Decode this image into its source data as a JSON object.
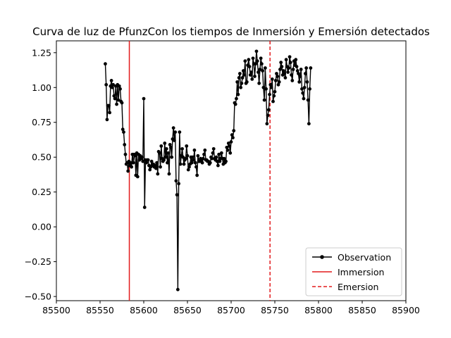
{
  "chart_data": {
    "type": "line",
    "title": "Curva de luz de PfunzCon los tiempos de Inmersión y Emersión detectados",
    "xlabel": "",
    "ylabel": "",
    "xlim": [
      85500,
      85900
    ],
    "ylim": [
      -0.53,
      1.335
    ],
    "xticks": [
      85500,
      85550,
      85600,
      85650,
      85700,
      85750,
      85800,
      85850,
      85900
    ],
    "yticks": [
      -0.5,
      -0.25,
      0.0,
      0.25,
      0.5,
      0.75,
      1.0,
      1.25
    ],
    "grid": false,
    "legend_position": "lower-right",
    "series": [
      {
        "name": "Observation",
        "color": "#000000",
        "marker": "circle",
        "x": [
          85556,
          85557,
          85558,
          85559,
          85560,
          85561,
          85562,
          85563,
          85564,
          85565,
          85566,
          85567,
          85568,
          85569,
          85570,
          85571,
          85572,
          85573,
          85574,
          85575,
          85576,
          85577,
          85578,
          85579,
          85580,
          85581,
          85582,
          85583,
          85584,
          85585,
          85586,
          85587,
          85588,
          85589,
          85590,
          85591,
          85592,
          85593,
          85594,
          85595,
          85596,
          85597,
          85598,
          85599,
          85600,
          85601,
          85602,
          85603,
          85604,
          85605,
          85606,
          85607,
          85608,
          85609,
          85610,
          85611,
          85612,
          85613,
          85614,
          85615,
          85616,
          85617,
          85618,
          85619,
          85620,
          85621,
          85622,
          85623,
          85624,
          85625,
          85626,
          85627,
          85628,
          85629,
          85630,
          85631,
          85632,
          85633,
          85634,
          85635,
          85636,
          85637,
          85638,
          85639,
          85640,
          85641,
          85642,
          85643,
          85644,
          85645,
          85646,
          85647,
          85648,
          85649,
          85650,
          85651,
          85652,
          85653,
          85654,
          85655,
          85656,
          85657,
          85658,
          85659,
          85660,
          85661,
          85662,
          85663,
          85664,
          85665,
          85666,
          85667,
          85668,
          85669,
          85670,
          85671,
          85672,
          85673,
          85674,
          85675,
          85676,
          85677,
          85678,
          85679,
          85680,
          85681,
          85682,
          85683,
          85684,
          85685,
          85686,
          85687,
          85688,
          85689,
          85690,
          85691,
          85692,
          85693,
          85694,
          85695,
          85696,
          85697,
          85698,
          85699,
          85700,
          85701,
          85702,
          85703,
          85704,
          85705,
          85706,
          85707,
          85708,
          85709,
          85710,
          85711,
          85712,
          85713,
          85714,
          85715,
          85716,
          85717,
          85718,
          85719,
          85720,
          85721,
          85722,
          85723,
          85724,
          85725,
          85726,
          85727,
          85728,
          85729,
          85730,
          85731,
          85732,
          85733,
          85734,
          85735,
          85736,
          85737,
          85738,
          85739,
          85740,
          85741,
          85742,
          85743,
          85744,
          85745,
          85746,
          85747,
          85748,
          85749,
          85750,
          85751,
          85752,
          85753,
          85754,
          85755,
          85756,
          85757,
          85758,
          85759,
          85760,
          85761,
          85762,
          85763,
          85764,
          85765,
          85766,
          85767,
          85768,
          85769,
          85770,
          85771,
          85772,
          85773,
          85774,
          85775,
          85776,
          85777,
          85778,
          85779,
          85780,
          85781,
          85782,
          85783,
          85784,
          85785,
          85786,
          85787,
          85788,
          85789,
          85790,
          85791
        ],
        "y": [
          1.17,
          1.02,
          0.77,
          0.87,
          0.87,
          0.82,
          1.01,
          1.05,
          1.0,
          1.02,
          0.94,
          0.92,
          1.01,
          0.88,
          1.02,
          0.91,
          1.01,
          0.99,
          0.9,
          0.89,
          0.7,
          0.68,
          0.59,
          0.52,
          0.45,
          0.46,
          0.4,
          0.47,
          0.44,
          0.46,
          0.43,
          0.52,
          0.46,
          0.52,
          0.51,
          0.37,
          0.53,
          0.36,
          0.52,
          0.48,
          0.51,
          0.49,
          0.5,
          0.47,
          0.92,
          0.14,
          0.48,
          0.46,
          0.48,
          0.48,
          0.44,
          0.41,
          0.43,
          0.47,
          0.44,
          0.45,
          0.43,
          0.44,
          0.42,
          0.46,
          0.38,
          0.54,
          0.53,
          0.43,
          0.58,
          0.49,
          0.47,
          0.48,
          0.6,
          0.5,
          0.56,
          0.46,
          0.53,
          0.38,
          0.59,
          0.57,
          0.5,
          0.63,
          0.71,
          0.62,
          0.68,
          0.33,
          0.23,
          -0.45,
          0.31,
          0.68,
          0.45,
          0.51,
          0.56,
          0.5,
          0.45,
          0.48,
          0.49,
          0.58,
          0.51,
          0.41,
          0.43,
          0.45,
          0.5,
          0.46,
          0.5,
          0.48,
          0.55,
          0.46,
          0.43,
          0.37,
          0.51,
          0.47,
          0.47,
          0.49,
          0.48,
          0.46,
          0.49,
          0.52,
          0.55,
          0.48,
          0.48,
          0.47,
          0.47,
          0.45,
          0.46,
          0.5,
          0.49,
          0.53,
          0.56,
          0.49,
          0.48,
          0.5,
          0.47,
          0.44,
          0.52,
          0.47,
          0.49,
          0.53,
          0.49,
          0.45,
          0.49,
          0.46,
          0.47,
          0.57,
          0.55,
          0.6,
          0.58,
          0.53,
          0.61,
          0.66,
          0.64,
          0.69,
          0.89,
          0.88,
          0.92,
          1.04,
          0.95,
          1.07,
          1.1,
          1.0,
          1.03,
          1.07,
          1.12,
          1.09,
          1.19,
          1.03,
          1.04,
          1.16,
          1.2,
          1.15,
          1.09,
          1.11,
          1.06,
          1.21,
          1.17,
          1.08,
          1.17,
          1.26,
          1.19,
          1.11,
          1.03,
          1.13,
          1.21,
          1.17,
          1.12,
          1.0,
          0.91,
          1.14,
          0.99,
          0.74,
          0.8,
          0.84,
          0.95,
          1.02,
          1.0,
          1.06,
          0.9,
          0.94,
          0.97,
          1.05,
          1.1,
          1.08,
          1.02,
          1.04,
          1.13,
          1.18,
          1.15,
          1.09,
          1.12,
          1.1,
          1.07,
          1.2,
          1.15,
          1.11,
          1.14,
          1.22,
          1.18,
          1.09,
          1.05,
          1.13,
          1.19,
          1.16,
          1.2,
          1.15,
          1.12,
          1.1,
          1.04,
          1.08,
          1.13,
          0.99,
          0.96,
          0.92,
          1.0,
          1.1,
          1.14,
          1.04,
          0.91,
          0.74,
          0.99,
          1.14
        ]
      },
      {
        "name": "Immersion",
        "color": "#e31a1c",
        "style": "solid",
        "x_value": 85583.5
      },
      {
        "name": "Emersion",
        "color": "#e31a1c",
        "style": "dashed",
        "x_value": 85744.5
      }
    ]
  }
}
